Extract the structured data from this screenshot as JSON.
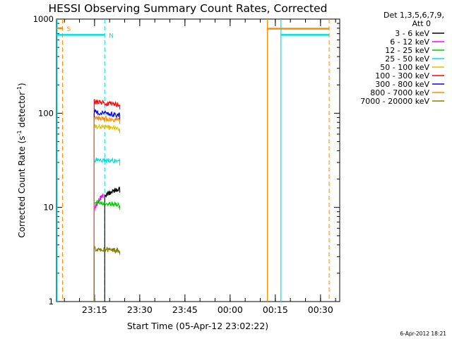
{
  "chart_data": {
    "type": "line",
    "title": "HESSI Observing Summary Count Rates, Corrected",
    "xlabel": "Start Time (05-Apr-12 23:02:22)",
    "ylabel_main": "Corrected Count Rate (s",
    "ylabel_sup1": "-1",
    "ylabel_mid": " detector",
    "ylabel_sup2": "-1",
    "ylabel_end": ")",
    "y_scale": "log",
    "ylim": [
      1,
      1000
    ],
    "xlim_minutes": [
      0,
      94
    ],
    "x_ticks": [
      {
        "label": "23:15",
        "value": 12.63
      },
      {
        "label": "23:30",
        "value": 27.63
      },
      {
        "label": "23:45",
        "value": 42.63
      },
      {
        "label": "00:00",
        "value": 57.63
      },
      {
        "label": "00:15",
        "value": 72.63
      },
      {
        "label": "00:30",
        "value": 87.63
      }
    ],
    "y_ticks": [
      {
        "label": "1",
        "value": 1
      },
      {
        "label": "10",
        "value": 10
      },
      {
        "label": "100",
        "value": 100
      },
      {
        "label": "1000",
        "value": 1000
      }
    ],
    "legend_header": [
      "Det 1,3,5,6,7,9,",
      "Att 0"
    ],
    "legend_position": "right",
    "series": [
      {
        "name": "3 - 6 keV",
        "color": "#000000",
        "segment": [
          16,
          21
        ],
        "start": 13.5,
        "end": 16
      },
      {
        "name": "6 - 12 keV",
        "color": "#ff00ff",
        "segment": [
          12.5,
          15.5
        ],
        "start": 9.5,
        "end": 14
      },
      {
        "name": "12 - 25 keV",
        "color": "#00cc00",
        "segment": [
          12.5,
          21
        ],
        "start": 11.5,
        "end": 10.5
      },
      {
        "name": "25 - 50 keV",
        "color": "#00e0e0",
        "segment": [
          12.5,
          21
        ],
        "start": 32,
        "end": 31
      },
      {
        "name": "50 - 100 keV",
        "color": "#e0c000",
        "segment": [
          12.5,
          21
        ],
        "start": 73,
        "end": 68
      },
      {
        "name": "100 - 300 keV",
        "color": "#ff0000",
        "segment": [
          12.5,
          21
        ],
        "start": 133,
        "end": 122
      },
      {
        "name": "300 - 800 keV",
        "color": "#0000ff",
        "segment": [
          12.5,
          21
        ],
        "start": 103,
        "end": 95
      },
      {
        "name": "800 - 7000 keV",
        "color": "#ff8c00",
        "segment": [
          12.5,
          21
        ],
        "start": 90,
        "end": 85
      },
      {
        "name": "7000 - 20000 keV",
        "color": "#808000",
        "segment": [
          12.5,
          21
        ],
        "start": 3.6,
        "end": 3.5
      }
    ],
    "markers": [
      {
        "label": "S",
        "color": "#ff8c00",
        "bar_start": 0,
        "bar_end": 2,
        "level": 800
      },
      {
        "label": "N",
        "color": "#00e0e0",
        "bar_start": 0,
        "bar_end": 16,
        "level": 680
      },
      {
        "label": "",
        "color": "#ff8c00",
        "bar_start": 70,
        "bar_end": 90.5,
        "level": 790
      },
      {
        "label": "",
        "color": "#00e0e0",
        "bar_start": 74.5,
        "bar_end": 90.5,
        "level": 680
      }
    ],
    "footer_date": "6-Apr-2012 18:21"
  }
}
